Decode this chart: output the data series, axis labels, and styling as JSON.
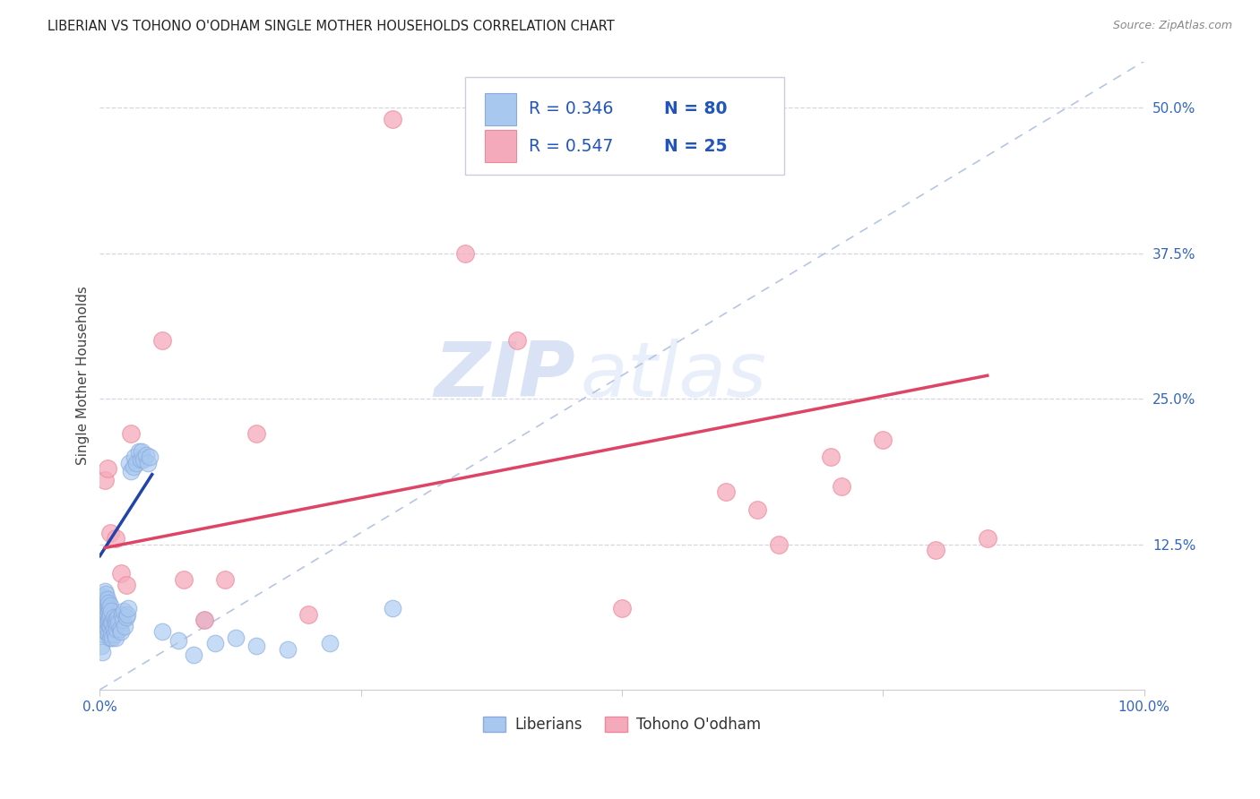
{
  "title": "LIBERIAN VS TOHONO O'ODHAM SINGLE MOTHER HOUSEHOLDS CORRELATION CHART",
  "source": "Source: ZipAtlas.com",
  "ylabel": "Single Mother Households",
  "xlim": [
    0,
    1.0
  ],
  "ylim": [
    0,
    0.54
  ],
  "xticks": [
    0.0,
    0.25,
    0.5,
    0.75,
    1.0
  ],
  "xtick_labels": [
    "0.0%",
    "",
    "",
    "",
    "100.0%"
  ],
  "yticks_right": [
    0.125,
    0.25,
    0.375,
    0.5
  ],
  "ytick_labels_right": [
    "12.5%",
    "25.0%",
    "37.5%",
    "50.0%"
  ],
  "blue_R": 0.346,
  "blue_N": 80,
  "pink_R": 0.547,
  "pink_N": 25,
  "blue_color": "#A8C8F0",
  "pink_color": "#F5AABB",
  "blue_edge": "#88AADD",
  "pink_edge": "#EE8899",
  "blue_line_color": "#2244AA",
  "pink_line_color": "#DD4466",
  "diag_color": "#AABBDD",
  "legend_text_color": "#2255BB",
  "legend_label_blue": "Liberians",
  "legend_label_pink": "Tohono O'odham",
  "title_fontsize": 10.5,
  "source_fontsize": 9,
  "watermark_zip": "ZIP",
  "watermark_atlas": "atlas",
  "blue_dots_x": [
    0.001,
    0.002,
    0.002,
    0.003,
    0.003,
    0.003,
    0.004,
    0.004,
    0.004,
    0.005,
    0.005,
    0.005,
    0.005,
    0.006,
    0.006,
    0.006,
    0.006,
    0.006,
    0.007,
    0.007,
    0.007,
    0.007,
    0.007,
    0.008,
    0.008,
    0.008,
    0.008,
    0.009,
    0.009,
    0.009,
    0.01,
    0.01,
    0.01,
    0.01,
    0.011,
    0.011,
    0.011,
    0.012,
    0.012,
    0.013,
    0.013,
    0.014,
    0.014,
    0.015,
    0.015,
    0.016,
    0.016,
    0.017,
    0.018,
    0.019,
    0.02,
    0.021,
    0.022,
    0.023,
    0.024,
    0.025,
    0.026,
    0.027,
    0.028,
    0.03,
    0.032,
    0.033,
    0.035,
    0.037,
    0.039,
    0.04,
    0.042,
    0.044,
    0.046,
    0.048,
    0.06,
    0.075,
    0.09,
    0.1,
    0.11,
    0.13,
    0.15,
    0.18,
    0.22,
    0.28
  ],
  "blue_dots_y": [
    0.038,
    0.032,
    0.055,
    0.048,
    0.065,
    0.072,
    0.055,
    0.068,
    0.08,
    0.058,
    0.072,
    0.078,
    0.085,
    0.05,
    0.062,
    0.068,
    0.075,
    0.082,
    0.052,
    0.058,
    0.065,
    0.072,
    0.078,
    0.048,
    0.06,
    0.068,
    0.075,
    0.055,
    0.062,
    0.07,
    0.045,
    0.055,
    0.065,
    0.072,
    0.048,
    0.058,
    0.068,
    0.045,
    0.058,
    0.052,
    0.062,
    0.048,
    0.058,
    0.045,
    0.06,
    0.052,
    0.058,
    0.062,
    0.058,
    0.052,
    0.05,
    0.065,
    0.06,
    0.068,
    0.055,
    0.062,
    0.065,
    0.07,
    0.195,
    0.188,
    0.192,
    0.2,
    0.195,
    0.205,
    0.198,
    0.205,
    0.198,
    0.202,
    0.195,
    0.2,
    0.05,
    0.042,
    0.03,
    0.06,
    0.04,
    0.045,
    0.038,
    0.035,
    0.04,
    0.07
  ],
  "pink_dots_x": [
    0.005,
    0.007,
    0.01,
    0.015,
    0.02,
    0.025,
    0.03,
    0.06,
    0.08,
    0.1,
    0.12,
    0.15,
    0.2,
    0.28,
    0.35,
    0.4,
    0.5,
    0.6,
    0.63,
    0.65,
    0.7,
    0.71,
    0.75,
    0.8,
    0.85
  ],
  "pink_dots_y": [
    0.18,
    0.19,
    0.135,
    0.13,
    0.1,
    0.09,
    0.22,
    0.3,
    0.095,
    0.06,
    0.095,
    0.22,
    0.065,
    0.49,
    0.375,
    0.3,
    0.07,
    0.17,
    0.155,
    0.125,
    0.2,
    0.175,
    0.215,
    0.12,
    0.13
  ],
  "blue_line_x": [
    0.0,
    0.05
  ],
  "blue_line_y": [
    0.115,
    0.185
  ],
  "pink_line_x": [
    0.005,
    0.85
  ],
  "pink_line_y": [
    0.122,
    0.27
  ]
}
